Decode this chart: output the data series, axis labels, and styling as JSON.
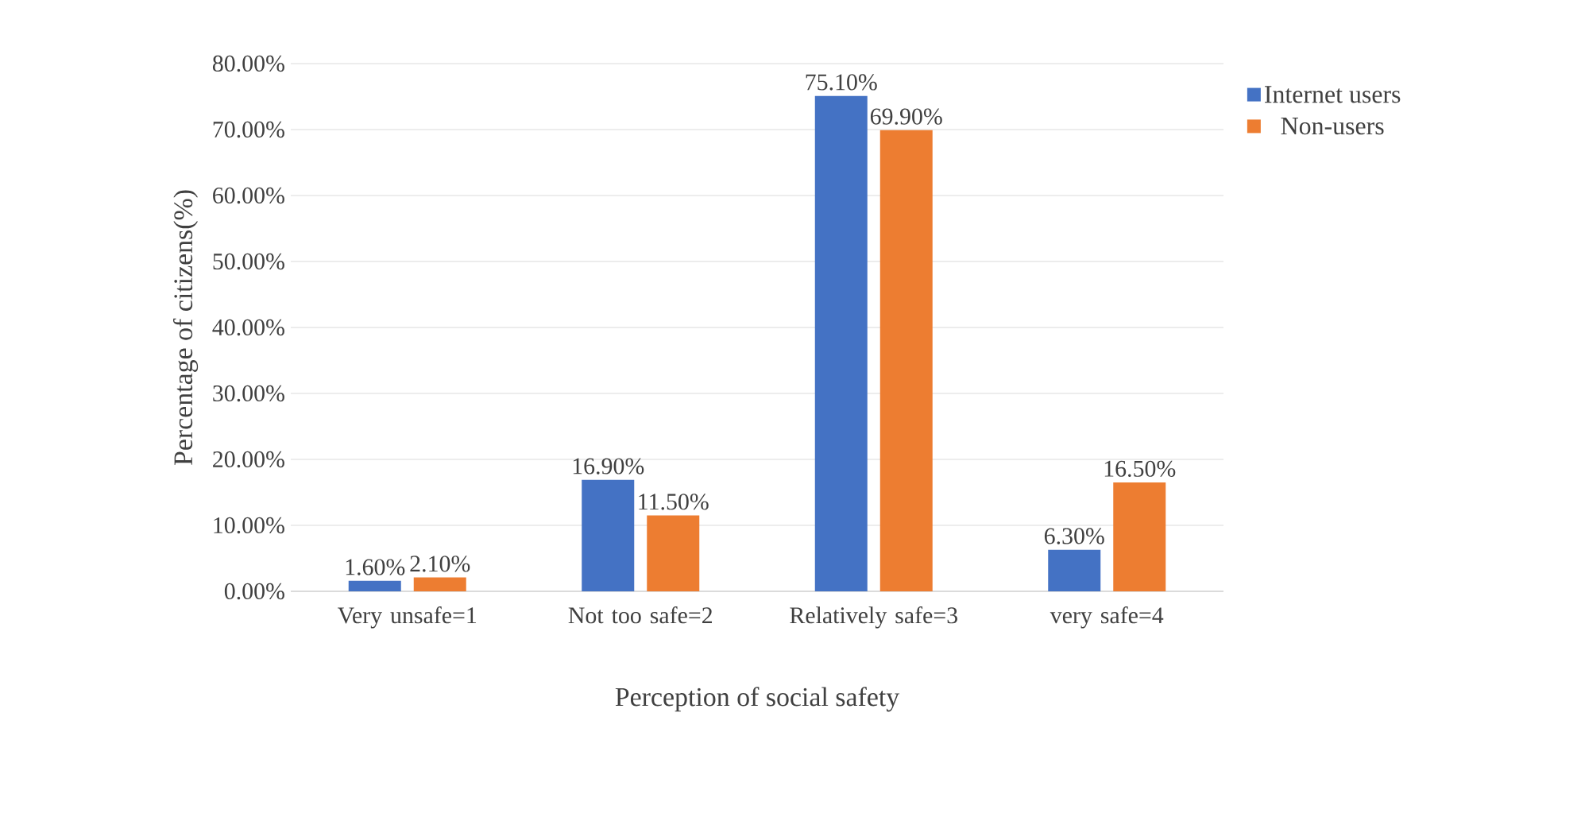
{
  "chart_data": {
    "type": "bar",
    "xlabel": "Perception of social safety",
    "ylabel": "Percentage of citizens(%)",
    "categories": [
      "Very unsafe=1",
      "Not too safe=2",
      "Relatively safe=3",
      "very safe=4"
    ],
    "series": [
      {
        "name": "Internet users",
        "color": "#4472c4",
        "values": [
          1.6,
          16.9,
          75.1,
          6.3
        ],
        "value_labels": [
          "1.60%",
          "16.90%",
          "75.10%",
          "6.30%"
        ]
      },
      {
        "name": "Non-users",
        "color": "#ed7d31",
        "values": [
          2.1,
          11.5,
          69.9,
          16.5
        ],
        "value_labels": [
          "2.10%",
          "11.50%",
          "69.90%",
          "16.50%"
        ]
      }
    ],
    "ylim": [
      0,
      80
    ],
    "yticks": [
      {
        "value": 0,
        "label": "0.00%"
      },
      {
        "value": 10,
        "label": "10.00%"
      },
      {
        "value": 20,
        "label": "20.00%"
      },
      {
        "value": 30,
        "label": "30.00%"
      },
      {
        "value": 40,
        "label": "40.00%"
      },
      {
        "value": 50,
        "label": "50.00%"
      },
      {
        "value": 60,
        "label": "60.00%"
      },
      {
        "value": 70,
        "label": "70.00%"
      },
      {
        "value": 80,
        "label": "80.00%"
      }
    ],
    "grid": "y",
    "legend": "right"
  }
}
